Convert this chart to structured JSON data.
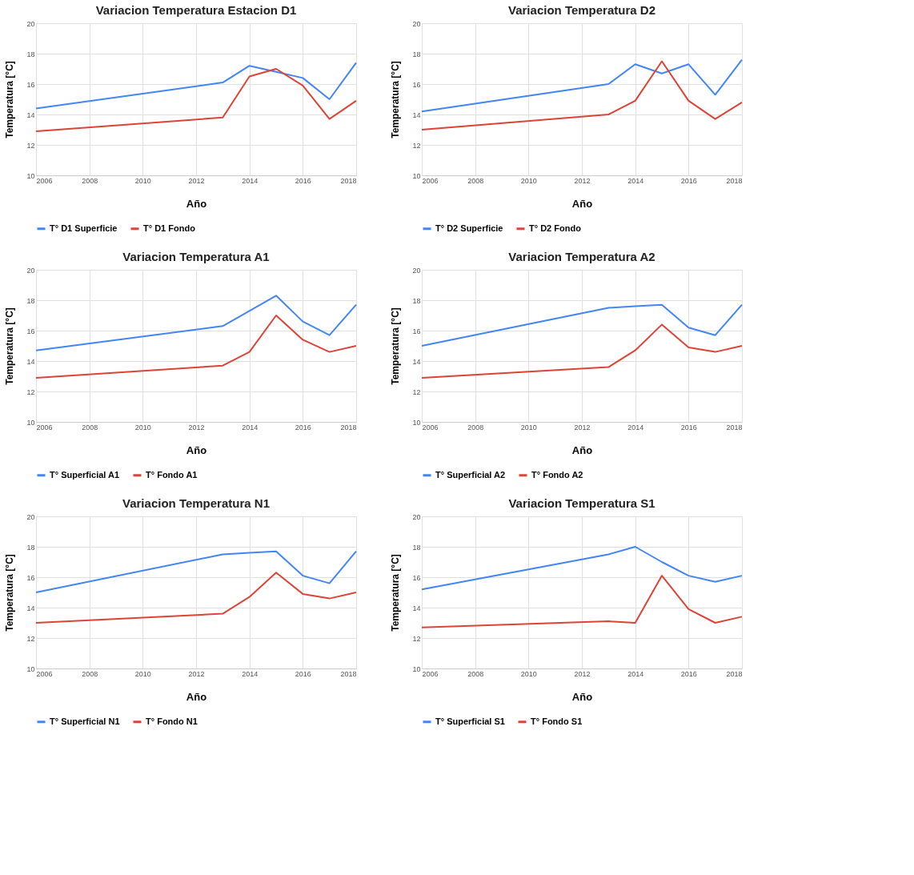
{
  "chart_data": [
    {
      "type": "line",
      "title": "Variacion Temperatura Estacion D1",
      "xlabel": "Año",
      "ylabel": "Temperatura [°C]",
      "x": [
        2006,
        2013,
        2014,
        2015,
        2016,
        2017,
        2018
      ],
      "xlim": [
        2006,
        2018
      ],
      "xticks": [
        2006,
        2008,
        2010,
        2012,
        2014,
        2016,
        2018
      ],
      "ylim": [
        10,
        20
      ],
      "yticks": [
        10,
        12,
        14,
        16,
        18,
        20
      ],
      "grid": true,
      "legend": "bottom",
      "series": [
        {
          "name": "T° D1 Superficie",
          "color": "#4285f4",
          "values": [
            14.4,
            16.1,
            17.2,
            16.8,
            16.4,
            15.0,
            17.4
          ]
        },
        {
          "name": "T° D1 Fondo",
          "color": "#db4437",
          "values": [
            12.9,
            13.8,
            16.5,
            17.0,
            15.9,
            13.7,
            14.9
          ]
        }
      ]
    },
    {
      "type": "line",
      "title": "Variacion Temperatura D2",
      "xlabel": "Año",
      "ylabel": "Temperatura  [°C]",
      "x": [
        2006,
        2013,
        2014,
        2015,
        2016,
        2017,
        2018
      ],
      "xlim": [
        2006,
        2018
      ],
      "xticks": [
        2006,
        2008,
        2010,
        2012,
        2014,
        2016,
        2018
      ],
      "ylim": [
        10,
        20
      ],
      "yticks": [
        10,
        12,
        14,
        16,
        18,
        20
      ],
      "grid": true,
      "legend": "bottom",
      "series": [
        {
          "name": "T° D2 Superficie",
          "color": "#4285f4",
          "values": [
            14.2,
            16.0,
            17.3,
            16.7,
            17.3,
            15.3,
            17.6
          ]
        },
        {
          "name": "T° D2 Fondo",
          "color": "#db4437",
          "values": [
            13.0,
            14.0,
            14.9,
            17.5,
            14.9,
            13.7,
            14.8
          ]
        }
      ]
    },
    {
      "type": "line",
      "title": "Variacion Temperatura A1",
      "xlabel": "Año",
      "ylabel": "Temperatura [°C]",
      "x": [
        2006,
        2013,
        2014,
        2015,
        2016,
        2017,
        2018
      ],
      "xlim": [
        2006,
        2018
      ],
      "xticks": [
        2006,
        2008,
        2010,
        2012,
        2014,
        2016,
        2018
      ],
      "ylim": [
        10,
        20
      ],
      "yticks": [
        10,
        12,
        14,
        16,
        18,
        20
      ],
      "grid": true,
      "legend": "bottom",
      "series": [
        {
          "name": "T° Superficial A1",
          "color": "#4285f4",
          "values": [
            14.7,
            16.3,
            17.3,
            18.3,
            16.6,
            15.7,
            17.7
          ]
        },
        {
          "name": "T° Fondo A1",
          "color": "#db4437",
          "values": [
            12.9,
            13.7,
            14.6,
            17.0,
            15.4,
            14.6,
            15.0
          ]
        }
      ]
    },
    {
      "type": "line",
      "title": "Variacion Temperatura A2",
      "xlabel": "Año",
      "ylabel": "Temperatura [°C]",
      "x": [
        2006,
        2013,
        2014,
        2015,
        2016,
        2017,
        2018
      ],
      "xlim": [
        2006,
        2018
      ],
      "xticks": [
        2006,
        2008,
        2010,
        2012,
        2014,
        2016,
        2018
      ],
      "ylim": [
        10,
        20
      ],
      "yticks": [
        10,
        12,
        14,
        16,
        18,
        20
      ],
      "grid": true,
      "legend": "bottom",
      "series": [
        {
          "name": "T° Superficial A2",
          "color": "#4285f4",
          "values": [
            15.0,
            17.5,
            17.6,
            17.7,
            16.2,
            15.7,
            17.7
          ]
        },
        {
          "name": "T° Fondo A2",
          "color": "#db4437",
          "values": [
            12.9,
            13.6,
            14.7,
            16.4,
            14.9,
            14.6,
            15.0
          ]
        }
      ]
    },
    {
      "type": "line",
      "title": "Variacion Temperatura N1",
      "xlabel": "Año",
      "ylabel": "Temperatura [°C]",
      "x": [
        2006,
        2013,
        2014,
        2015,
        2016,
        2017,
        2018
      ],
      "xlim": [
        2006,
        2018
      ],
      "xticks": [
        2006,
        2008,
        2010,
        2012,
        2014,
        2016,
        2018
      ],
      "ylim": [
        10,
        20
      ],
      "yticks": [
        10,
        12,
        14,
        16,
        18,
        20
      ],
      "grid": true,
      "legend": "bottom",
      "series": [
        {
          "name": "T° Superficial N1",
          "color": "#4285f4",
          "values": [
            15.0,
            17.5,
            17.6,
            17.7,
            16.1,
            15.6,
            17.7
          ]
        },
        {
          "name": "T° Fondo N1",
          "color": "#db4437",
          "values": [
            13.0,
            13.6,
            14.7,
            16.3,
            14.9,
            14.6,
            15.0
          ]
        }
      ]
    },
    {
      "type": "line",
      "title": "Variacion Temperatura S1",
      "xlabel": "Año",
      "ylabel": "Temperatura [°C]",
      "x": [
        2006,
        2013,
        2014,
        2015,
        2016,
        2017,
        2018
      ],
      "xlim": [
        2006,
        2018
      ],
      "xticks": [
        2006,
        2008,
        2010,
        2012,
        2014,
        2016,
        2018
      ],
      "ylim": [
        10,
        20
      ],
      "yticks": [
        10,
        12,
        14,
        16,
        18,
        20
      ],
      "grid": true,
      "legend": "bottom",
      "series": [
        {
          "name": "T° Superficial S1",
          "color": "#4285f4",
          "values": [
            15.2,
            17.5,
            18.0,
            17.0,
            16.1,
            15.7,
            16.1
          ]
        },
        {
          "name": "T° Fondo S1",
          "color": "#db4437",
          "values": [
            12.7,
            13.1,
            13.0,
            16.1,
            13.9,
            13.0,
            13.4
          ]
        }
      ]
    }
  ]
}
